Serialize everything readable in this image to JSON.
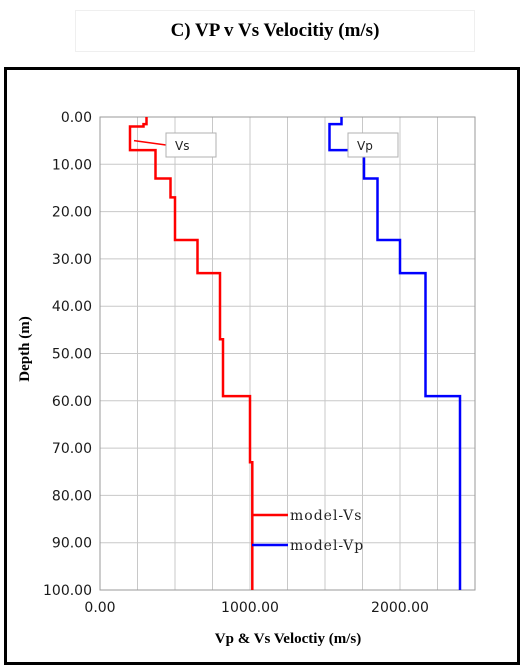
{
  "chart_data": {
    "type": "line",
    "title": "C) VP v Vs Velocitiy (m/s)",
    "xlabel": "Vp  & Vs Veloctiy (m/s)",
    "ylabel": "Depth (m)",
    "xlim": [
      0,
      2500
    ],
    "ylim": [
      100,
      0
    ],
    "y_inverted": true,
    "x_ticks": [
      0,
      1000,
      2000
    ],
    "x_tick_labels": [
      "0.00",
      "1000.00",
      "2000.00"
    ],
    "y_ticks": [
      0,
      10,
      20,
      30,
      40,
      50,
      60,
      70,
      80,
      90,
      100
    ],
    "y_tick_labels": [
      "0.00",
      "10.00",
      "20.00",
      "30.00",
      "40.00",
      "50.00",
      "60.00",
      "70.00",
      "80.00",
      "90.00",
      "100.00"
    ],
    "x_minor_gridlines": 250,
    "grid": true,
    "legend_position": "bottom-right",
    "series": [
      {
        "name": "model-Vs",
        "color": "#ff0000",
        "callout": "Vs",
        "points": [
          [
            310,
            0
          ],
          [
            310,
            1.5
          ],
          [
            290,
            1.5
          ],
          [
            290,
            2
          ],
          [
            200,
            2
          ],
          [
            200,
            7
          ],
          [
            370,
            7
          ],
          [
            370,
            13
          ],
          [
            470,
            13
          ],
          [
            470,
            17
          ],
          [
            500,
            17
          ],
          [
            500,
            26
          ],
          [
            650,
            26
          ],
          [
            650,
            33
          ],
          [
            800,
            33
          ],
          [
            800,
            47
          ],
          [
            820,
            47
          ],
          [
            820,
            59
          ],
          [
            1000,
            59
          ],
          [
            1000,
            73
          ],
          [
            1015,
            73
          ],
          [
            1015,
            100
          ]
        ]
      },
      {
        "name": "model-Vp",
        "color": "#0000ff",
        "callout": "Vp",
        "points": [
          [
            1610,
            0
          ],
          [
            1610,
            1.5
          ],
          [
            1530,
            1.5
          ],
          [
            1530,
            7
          ],
          [
            1760,
            7
          ],
          [
            1760,
            13
          ],
          [
            1850,
            13
          ],
          [
            1850,
            26
          ],
          [
            2000,
            26
          ],
          [
            2000,
            33
          ],
          [
            2170,
            33
          ],
          [
            2170,
            59
          ],
          [
            2400,
            59
          ],
          [
            2400,
            100
          ]
        ]
      }
    ]
  }
}
